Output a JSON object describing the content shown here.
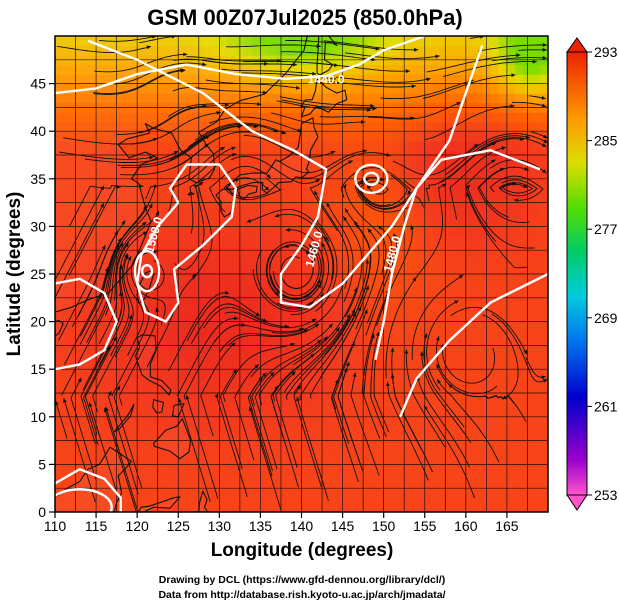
{
  "chart_data": {
    "type": "heatmap",
    "title": "GSM 00Z07Jul2025 (850.0hPa)",
    "xlabel": "Longitude (degrees)",
    "ylabel": "Latitude (degrees)",
    "xlim": [
      110,
      170
    ],
    "ylim": [
      0,
      50
    ],
    "xticks": [
      110,
      115,
      120,
      125,
      130,
      135,
      140,
      145,
      150,
      155,
      160,
      165
    ],
    "yticks": [
      0,
      5,
      10,
      15,
      20,
      25,
      30,
      35,
      40,
      45
    ],
    "grid": true,
    "colorbar": {
      "ticks": [
        253,
        261,
        269,
        277,
        285,
        293
      ],
      "range": [
        253,
        293
      ],
      "placement": "right"
    },
    "contour_labels": [
      {
        "text": "1440.0",
        "lon": 143,
        "lat": 45
      },
      {
        "text": "1500.0",
        "lon": 122.5,
        "lat": 29
      },
      {
        "text": "1460.0",
        "lon": 142,
        "lat": 27.5
      },
      {
        "text": "1480.0",
        "lon": 151.5,
        "lat": 27
      }
    ],
    "features": {
      "fill_variable_range_approx": [
        279,
        293
      ],
      "warm_core_lon_lat": [
        [
          130,
          20
        ],
        [
          160,
          35
        ]
      ],
      "cool_corner": "top-right"
    },
    "credits": [
      "Drawing by DCL (https://www.gfd-dennou.org/library/dcl/)",
      "Data from http://database.rish.kyoto-u.ac.jp/arch/jmadata/"
    ]
  }
}
